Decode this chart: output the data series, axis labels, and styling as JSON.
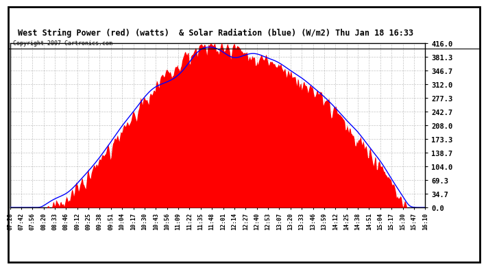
{
  "title": "West String Power (red) (watts)  & Solar Radiation (blue) (W/m2) Thu Jan 18 16:33",
  "copyright": "Copyright 2007 Cartronics.com",
  "background_color": "#ffffff",
  "plot_bg_color": "#ffffff",
  "grid_color": "#aaaaaa",
  "fill_color": "#ff0000",
  "line_color": "#0000ff",
  "yticks": [
    0.0,
    34.7,
    69.3,
    104.0,
    138.7,
    173.3,
    208.0,
    242.7,
    277.3,
    312.0,
    346.7,
    381.3,
    416.0
  ],
  "ymax": 416.0,
  "ymin": 0.0,
  "xtick_labels": [
    "07:28",
    "07:42",
    "07:56",
    "08:20",
    "08:33",
    "08:46",
    "09:12",
    "09:25",
    "09:38",
    "09:51",
    "10:04",
    "10:17",
    "10:30",
    "10:43",
    "10:56",
    "11:09",
    "11:22",
    "11:35",
    "11:48",
    "12:01",
    "12:14",
    "12:27",
    "12:40",
    "12:53",
    "13:07",
    "13:20",
    "13:33",
    "13:46",
    "13:59",
    "14:12",
    "14:25",
    "14:38",
    "14:51",
    "15:04",
    "15:17",
    "15:30",
    "15:47",
    "16:10"
  ]
}
